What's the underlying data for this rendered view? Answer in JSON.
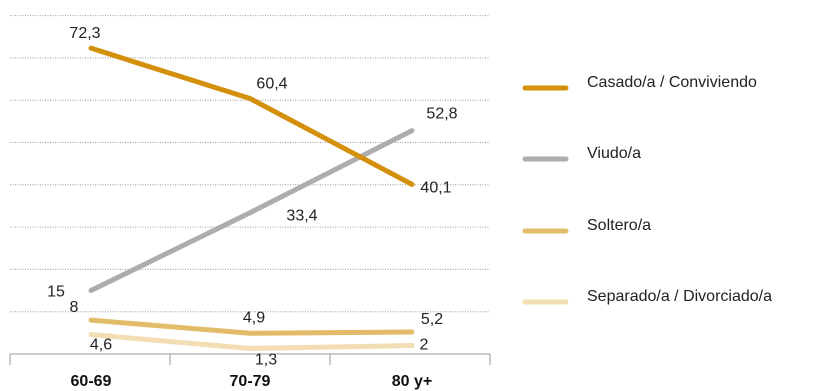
{
  "chart_data": {
    "type": "line",
    "categories": [
      "60-69",
      "70-79",
      "80 y+"
    ],
    "ylim": [
      0,
      80
    ],
    "grid": true,
    "legend_position": "right",
    "series": [
      {
        "name": "Casado/a / Conviviendo",
        "values": [
          72.3,
          60.4,
          40.1
        ],
        "labels": [
          "72,3",
          "60,4",
          "40,1"
        ],
        "color": "#D4900A"
      },
      {
        "name": "Viudo/a",
        "values": [
          15,
          33.4,
          52.8
        ],
        "labels": [
          "15",
          "33,4",
          "52,8"
        ],
        "color": "#ADADAD"
      },
      {
        "name": "Soltero/a",
        "values": [
          8,
          4.9,
          5.2
        ],
        "labels": [
          "8",
          "4,9",
          "5,2"
        ],
        "color": "#E3BC6A"
      },
      {
        "name": "Separado/a / Divorciado/a",
        "values": [
          4.6,
          1.3,
          2
        ],
        "labels": [
          "4,6",
          "1,3",
          "2"
        ],
        "color": "#F3DDB2"
      }
    ]
  }
}
